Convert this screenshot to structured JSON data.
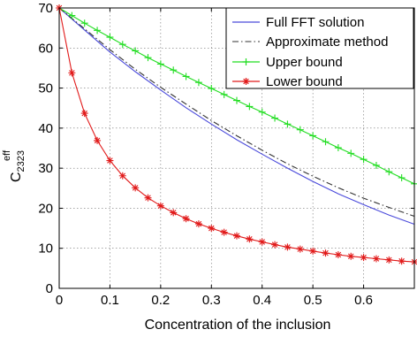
{
  "chart_data": {
    "type": "line",
    "title": "",
    "xlabel": "Concentration of the inclusion",
    "ylabel_base": "C",
    "ylabel_sup": "eff",
    "ylabel_sub": "2323",
    "xlim": [
      0,
      0.7
    ],
    "ylim": [
      0,
      70
    ],
    "xticks": [
      0,
      0.1,
      0.2,
      0.3,
      0.4,
      0.5,
      0.6
    ],
    "xtick_labels": [
      "0",
      "0.1",
      "0.2",
      "0.3",
      "0.4",
      "0.5",
      "0.6"
    ],
    "yticks": [
      0,
      10,
      20,
      30,
      40,
      50,
      60,
      70
    ],
    "ytick_labels": [
      "0",
      "10",
      "20",
      "30",
      "40",
      "50",
      "60",
      "70"
    ],
    "grid": true,
    "legend_position": "top-right",
    "series": [
      {
        "name": "Full FFT solution",
        "color": "#4a4adb",
        "style": "solid",
        "marker": "none",
        "x": [
          0,
          0.05,
          0.1,
          0.15,
          0.2,
          0.25,
          0.3,
          0.35,
          0.4,
          0.45,
          0.5,
          0.55,
          0.6,
          0.65,
          0.7
        ],
        "y": [
          70,
          64.5,
          59.0,
          54.1,
          49.5,
          45.1,
          41.0,
          37.1,
          33.5,
          30.0,
          26.7,
          23.6,
          20.9,
          18.3,
          16.0
        ]
      },
      {
        "name": "Approximate method",
        "color": "#333333",
        "style": "dashdot",
        "marker": "none",
        "x": [
          0,
          0.05,
          0.1,
          0.15,
          0.2,
          0.25,
          0.3,
          0.35,
          0.4,
          0.45,
          0.5,
          0.55,
          0.6,
          0.65,
          0.7
        ],
        "y": [
          70,
          64.8,
          59.6,
          54.7,
          50.2,
          46.0,
          41.9,
          38.1,
          34.5,
          31.1,
          28.0,
          25.1,
          22.5,
          20.2,
          18.0
        ]
      },
      {
        "name": "Upper bound",
        "color": "#22dd22",
        "style": "solid",
        "marker": "plus",
        "x": [
          0,
          0.025,
          0.05,
          0.075,
          0.1,
          0.125,
          0.15,
          0.175,
          0.2,
          0.225,
          0.25,
          0.275,
          0.3,
          0.325,
          0.35,
          0.375,
          0.4,
          0.425,
          0.45,
          0.475,
          0.5,
          0.525,
          0.55,
          0.575,
          0.6,
          0.625,
          0.65,
          0.675,
          0.7
        ],
        "y": [
          70,
          68.1,
          66.2,
          64.4,
          62.7,
          60.9,
          59.3,
          57.6,
          56.0,
          54.5,
          52.9,
          51.4,
          49.9,
          48.4,
          46.9,
          45.4,
          44.0,
          42.5,
          41.0,
          39.6,
          38.1,
          36.6,
          35.1,
          33.7,
          32.2,
          30.7,
          29.1,
          27.6,
          26.1
        ]
      },
      {
        "name": "Lower bound",
        "color": "#e11a1a",
        "style": "solid",
        "marker": "star",
        "x": [
          0,
          0.025,
          0.05,
          0.075,
          0.1,
          0.125,
          0.15,
          0.175,
          0.2,
          0.225,
          0.25,
          0.275,
          0.3,
          0.325,
          0.35,
          0.375,
          0.4,
          0.425,
          0.45,
          0.475,
          0.5,
          0.525,
          0.55,
          0.575,
          0.6,
          0.625,
          0.65,
          0.675,
          0.7
        ],
        "y": [
          70,
          53.8,
          43.7,
          36.9,
          31.9,
          28.1,
          25.1,
          22.6,
          20.6,
          18.9,
          17.4,
          16.1,
          15.0,
          14.0,
          13.1,
          12.3,
          11.6,
          10.9,
          10.3,
          9.8,
          9.3,
          8.8,
          8.4,
          8.0,
          7.7,
          7.4,
          7.1,
          6.8,
          6.6
        ]
      }
    ]
  }
}
